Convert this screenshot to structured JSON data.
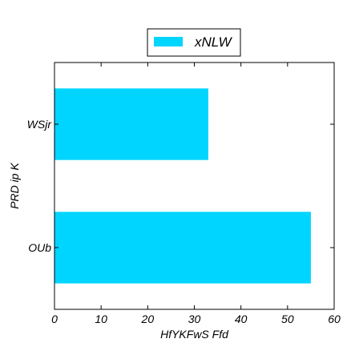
{
  "chart_data": {
    "type": "bar",
    "orientation": "horizontal",
    "categories": [
      "OUb",
      "WSjr"
    ],
    "series": [
      {
        "name": "xNLW",
        "values": [
          55,
          33
        ],
        "color": "#00d5ff"
      }
    ],
    "xlabel": "HfYKFwS Ffd",
    "ylabel": "PRD ip K",
    "xlim": [
      0,
      60
    ],
    "xticks": [
      0,
      10,
      20,
      30,
      40,
      50,
      60
    ],
    "grid": false,
    "legend_position": "top-center"
  }
}
